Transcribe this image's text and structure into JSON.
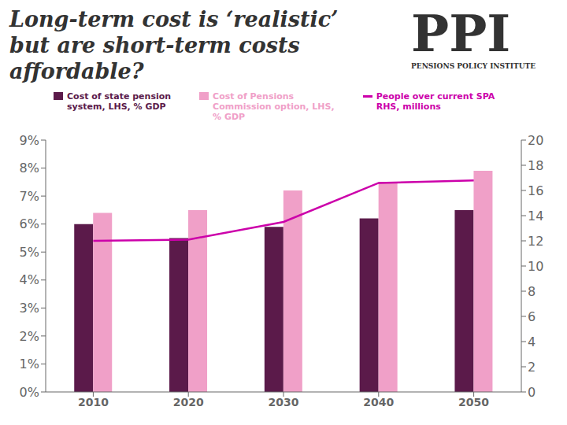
{
  "chart_data": {
    "type": "bar",
    "title": "Long-term cost is ‘realistic’\nbut are short-term costs\naffordable?",
    "annotations": [
      "PPI",
      "PENSIONS POLICY INSTITUTE"
    ],
    "categories": [
      "2010",
      "2020",
      "2030",
      "2040",
      "2050"
    ],
    "series": [
      {
        "name": "Cost of state pension\nsystem, LHS, % GDP",
        "type": "bar",
        "color": "#5b1a4a",
        "values": [
          6.0,
          5.5,
          5.9,
          6.2,
          6.5
        ]
      },
      {
        "name": "Cost of Pensions\nCommission option, LHS,\n% GDP",
        "type": "bar",
        "color": "#f0a0c8",
        "values": [
          6.4,
          6.5,
          7.2,
          7.5,
          7.9
        ]
      },
      {
        "name": "People over current SPA\nRHS, millions",
        "type": "line",
        "axis": "y2",
        "color": "#cc00aa",
        "values": [
          12.0,
          12.1,
          13.5,
          16.6,
          16.8
        ]
      }
    ],
    "ylim": [
      0,
      9
    ],
    "yticks": [
      {
        "value": 0,
        "label": "0%"
      },
      {
        "value": 1,
        "label": "1%"
      },
      {
        "value": 2,
        "label": "2%"
      },
      {
        "value": 3,
        "label": "3%"
      },
      {
        "value": 4,
        "label": "4%"
      },
      {
        "value": 5,
        "label": "5%"
      },
      {
        "value": 6,
        "label": "6%"
      },
      {
        "value": 7,
        "label": "7%"
      },
      {
        "value": 8,
        "label": "8%"
      },
      {
        "value": 9,
        "label": "9%"
      }
    ],
    "y2lim": [
      0,
      20
    ],
    "y2ticks": [
      0,
      2,
      4,
      6,
      8,
      10,
      12,
      14,
      16,
      18,
      20
    ],
    "grid": false
  }
}
